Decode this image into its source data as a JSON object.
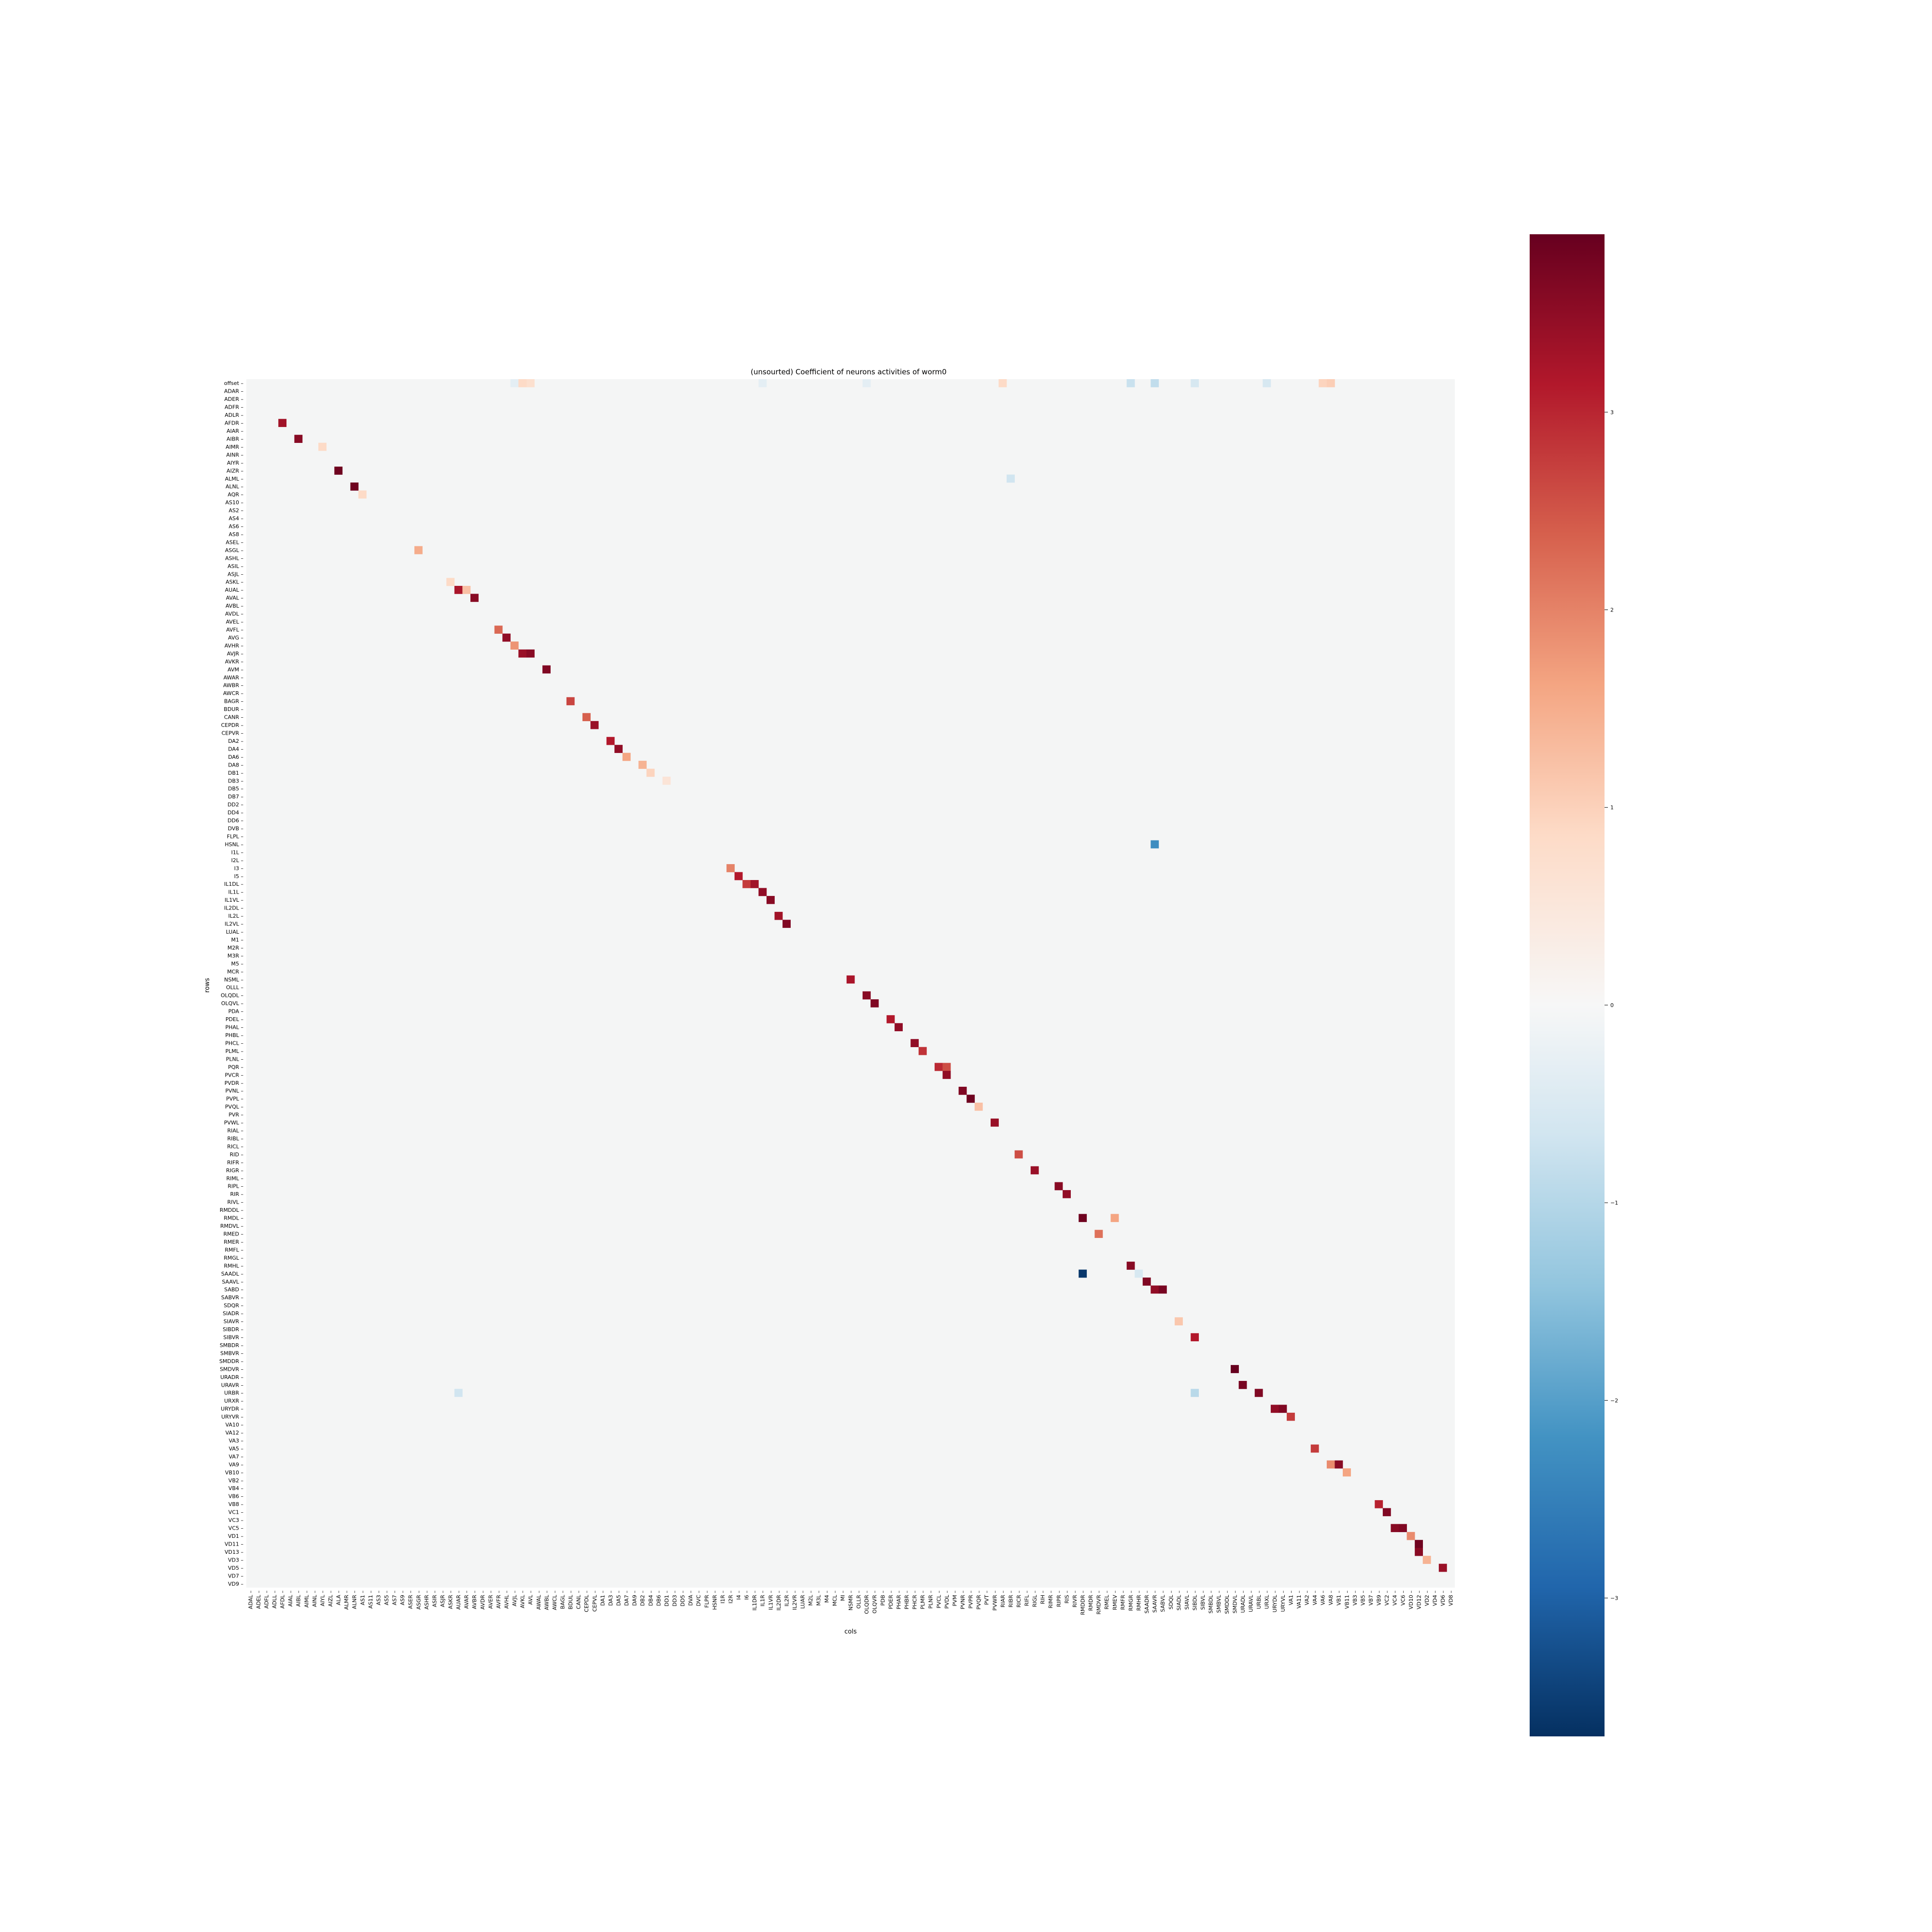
{
  "chart_data": {
    "type": "heatmap",
    "title": "(unsourted) Coefficient of neurons activities of worm0",
    "xlabel": "cols",
    "ylabel": "rows",
    "colormap": "RdBu_r",
    "background_value": 0,
    "vlim": [
      -3.7,
      3.9
    ],
    "colorbar_ticks": [
      3,
      2,
      1,
      0,
      -1,
      -2,
      -3
    ],
    "colorbar_tick_labels": [
      "3",
      "2",
      "1",
      "0",
      "−1",
      "−2",
      "−3"
    ],
    "y_tick_labels": [
      "offset",
      "ADAR",
      "ADER",
      "ADFR",
      "ADLR",
      "AFDR",
      "AIAR",
      "AIBR",
      "AIMR",
      "AINR",
      "AIYR",
      "AIZR",
      "ALML",
      "ALNL",
      "AQR",
      "AS10",
      "AS2",
      "AS4",
      "AS6",
      "AS8",
      "ASEL",
      "ASGL",
      "ASHL",
      "ASIL",
      "ASJL",
      "ASKL",
      "AUAL",
      "AVAL",
      "AVBL",
      "AVDL",
      "AVEL",
      "AVFL",
      "AVG",
      "AVHR",
      "AVJR",
      "AVKR",
      "AVM",
      "AWAR",
      "AWBR",
      "AWCR",
      "BAGR",
      "BDUR",
      "CANR",
      "CEPDR",
      "CEPVR",
      "DA2",
      "DA4",
      "DA6",
      "DA8",
      "DB1",
      "DB3",
      "DB5",
      "DB7",
      "DD2",
      "DD4",
      "DD6",
      "DVB",
      "FLPL",
      "HSNL",
      "I1L",
      "I2L",
      "I3",
      "I5",
      "IL1DL",
      "IL1L",
      "IL1VL",
      "IL2DL",
      "IL2L",
      "IL2VL",
      "LUAL",
      "M1",
      "M2R",
      "M3R",
      "M5",
      "MCR",
      "NSML",
      "OLLL",
      "OLQDL",
      "OLQVL",
      "PDA",
      "PDEL",
      "PHAL",
      "PHBL",
      "PHCL",
      "PLML",
      "PLNL",
      "PQR",
      "PVCR",
      "PVDR",
      "PVNL",
      "PVPL",
      "PVQL",
      "PVR",
      "PVWL",
      "RIAL",
      "RIBL",
      "RICL",
      "RID",
      "RIFR",
      "RIGR",
      "RIML",
      "RIPL",
      "RIR",
      "RIVL",
      "RMDDL",
      "RMDL",
      "RMDVL",
      "RMED",
      "RMER",
      "RMFL",
      "RMGL",
      "RMHL",
      "SAADL",
      "SAAVL",
      "SABD",
      "SABVR",
      "SDQR",
      "SIADR",
      "SIAVR",
      "SIBDR",
      "SIBVR",
      "SMBDR",
      "SMBVR",
      "SMDDR",
      "SMDVR",
      "URADR",
      "URAVR",
      "URBR",
      "URXR",
      "URYDR",
      "URYVR",
      "VA10",
      "VA12",
      "VA3",
      "VA5",
      "VA7",
      "VA9",
      "VB10",
      "VB2",
      "VB4",
      "VB6",
      "VB8",
      "VC1",
      "VC3",
      "VC5",
      "VD1",
      "VD11",
      "VD13",
      "VD3",
      "VD5",
      "VD7",
      "VD9"
    ],
    "x_tick_labels": [
      "ADAL",
      "ADEL",
      "ADFL",
      "ADLL",
      "AFDL",
      "AIAL",
      "AIBL",
      "AIML",
      "AINL",
      "AIYL",
      "AIZL",
      "ALA",
      "ALMR",
      "ALNR",
      "AS1",
      "AS11",
      "AS3",
      "AS5",
      "AS7",
      "AS9",
      "ASER",
      "ASGR",
      "ASHR",
      "ASIR",
      "ASJR",
      "ASKR",
      "AUAR",
      "AVAR",
      "AVBR",
      "AVDR",
      "AVER",
      "AVFR",
      "AVHL",
      "AVJL",
      "AVKL",
      "AVL",
      "AWAL",
      "AWBL",
      "AWCL",
      "BAGL",
      "BDUL",
      "CANL",
      "CEPDL",
      "CEPVL",
      "DA1",
      "DA3",
      "DA5",
      "DA7",
      "DA9",
      "DB2",
      "DB4",
      "DB6",
      "DD1",
      "DD3",
      "DD5",
      "DVA",
      "DVC",
      "FLPR",
      "HSNR",
      "I1R",
      "I2R",
      "I4",
      "I6",
      "IL1DR",
      "IL1R",
      "IL1VR",
      "IL2DR",
      "IL2R",
      "IL2VR",
      "LUAR",
      "M2L",
      "M3L",
      "M4",
      "MCL",
      "MI",
      "NSMR",
      "OLLR",
      "OLQDR",
      "OLQVR",
      "PDB",
      "PDER",
      "PHAR",
      "PHBR",
      "PHCR",
      "PLMR",
      "PLNR",
      "PVCL",
      "PVDL",
      "PVM",
      "PVNR",
      "PVPR",
      "PVQR",
      "PVT",
      "PVWR",
      "RIAR",
      "RIBR",
      "RICR",
      "RIFL",
      "RIGL",
      "RIH",
      "RIMR",
      "RIPR",
      "RIS",
      "RIVR",
      "RMDDR",
      "RMDR",
      "RMDVR",
      "RMEL",
      "RMEV",
      "RMFR",
      "RMGR",
      "RMHR",
      "SAADR",
      "SAAVR",
      "SABVL",
      "SDQL",
      "SIADL",
      "SIAVL",
      "SIBDL",
      "SIBVL",
      "SMBDL",
      "SMBVL",
      "SMDDL",
      "SMDVL",
      "URADL",
      "URAVL",
      "URBL",
      "URXL",
      "URYDL",
      "URYVL",
      "VA1",
      "VA11",
      "VA2",
      "VA4",
      "VA6",
      "VA8",
      "VB1",
      "VB11",
      "VB3",
      "VB5",
      "VB7",
      "VB9",
      "VC2",
      "VC4",
      "VC6",
      "VD10",
      "VD12",
      "VD2",
      "VD4",
      "VD6",
      "VD8"
    ],
    "n_rows": 151,
    "n_cols": 151,
    "highlighted_cells": [
      {
        "row": "offset",
        "col": "AVJL",
        "value": -0.3
      },
      {
        "row": "offset",
        "col": "AVL",
        "value": 0.5
      },
      {
        "row": "offset",
        "col": "AVKL",
        "value": 0.6
      },
      {
        "row": "offset",
        "col": "IL1R",
        "value": -0.3
      },
      {
        "row": "offset",
        "col": "OLQDR",
        "value": -0.3
      },
      {
        "row": "offset",
        "col": "RIAR",
        "value": 0.6
      },
      {
        "row": "offset",
        "col": "RMGR",
        "value": -0.7
      },
      {
        "row": "offset",
        "col": "SAAVR",
        "value": -0.8
      },
      {
        "row": "offset",
        "col": "SIBDL",
        "value": -0.5
      },
      {
        "row": "offset",
        "col": "URXL",
        "value": -0.5
      },
      {
        "row": "offset",
        "col": "VA6",
        "value": 0.7
      },
      {
        "row": "offset",
        "col": "VA8",
        "value": 0.8
      },
      {
        "row": "AFDR",
        "col": "AFDL",
        "value": 3.2
      },
      {
        "row": "AIBR",
        "col": "AIBL",
        "value": 3.5
      },
      {
        "row": "AIMR",
        "col": "AIYL",
        "value": 0.6
      },
      {
        "row": "AIZR",
        "col": "ALA",
        "value": 3.8
      },
      {
        "row": "ALML",
        "col": "RIBR",
        "value": -0.6
      },
      {
        "row": "ALNL",
        "col": "ALNR",
        "value": 3.8
      },
      {
        "row": "AQR",
        "col": "AS1",
        "value": 0.6
      },
      {
        "row": "ASGL",
        "col": "ASGR",
        "value": 1.3
      },
      {
        "row": "ASKL",
        "col": "ASKR",
        "value": 0.6
      },
      {
        "row": "AUAL",
        "col": "AUAR",
        "value": 3.1
      },
      {
        "row": "AUAL",
        "col": "AVAR",
        "value": 1.0
      },
      {
        "row": "AVAL",
        "col": "AVBR",
        "value": 3.5
      },
      {
        "row": "AVFL",
        "col": "AVFR",
        "value": 2.1
      },
      {
        "row": "AVG",
        "col": "AVHL",
        "value": 3.4
      },
      {
        "row": "AVHR",
        "col": "AVJL",
        "value": 1.6
      },
      {
        "row": "AVJR",
        "col": "AVKL",
        "value": 3.3
      },
      {
        "row": "AVJR",
        "col": "AVL",
        "value": 3.5
      },
      {
        "row": "AVM",
        "col": "AWBL",
        "value": 3.6
      },
      {
        "row": "BAGR",
        "col": "BDUL",
        "value": 2.5
      },
      {
        "row": "CANR",
        "col": "CEPDL",
        "value": 2.2
      },
      {
        "row": "CEPDR",
        "col": "CEPVL",
        "value": 3.3
      },
      {
        "row": "DA2",
        "col": "DA3",
        "value": 3.0
      },
      {
        "row": "DA4",
        "col": "DA5",
        "value": 3.4
      },
      {
        "row": "DA6",
        "col": "DA7",
        "value": 1.4
      },
      {
        "row": "DA8",
        "col": "DB2",
        "value": 1.2
      },
      {
        "row": "DB1",
        "col": "DB4",
        "value": 0.7
      },
      {
        "row": "DB3",
        "col": "DD1",
        "value": 0.4
      },
      {
        "row": "HSNL",
        "col": "SAAVR",
        "value": -2.3
      },
      {
        "row": "I3",
        "col": "I2R",
        "value": 1.8
      },
      {
        "row": "I5",
        "col": "I4",
        "value": 3.0
      },
      {
        "row": "IL1DL",
        "col": "I6",
        "value": 2.6
      },
      {
        "row": "IL1DL",
        "col": "IL1DR",
        "value": 3.2
      },
      {
        "row": "IL1L",
        "col": "IL1R",
        "value": 3.4
      },
      {
        "row": "IL1VL",
        "col": "IL1VR",
        "value": 3.5
      },
      {
        "row": "IL2L",
        "col": "IL2DR",
        "value": 3.2
      },
      {
        "row": "IL2VL",
        "col": "IL2R",
        "value": 3.6
      },
      {
        "row": "NSML",
        "col": "NSMR",
        "value": 3.1
      },
      {
        "row": "OLQDL",
        "col": "OLQDR",
        "value": 3.5
      },
      {
        "row": "OLQVL",
        "col": "OLQVR",
        "value": 3.6
      },
      {
        "row": "PDEL",
        "col": "PDER",
        "value": 3.0
      },
      {
        "row": "PHAL",
        "col": "PHAR",
        "value": 3.4
      },
      {
        "row": "PHCL",
        "col": "PHCR",
        "value": 3.4
      },
      {
        "row": "PLML",
        "col": "PLMR",
        "value": 2.7
      },
      {
        "row": "PQR",
        "col": "PVCL",
        "value": 2.8
      },
      {
        "row": "PQR",
        "col": "PVDL",
        "value": 2.4
      },
      {
        "row": "PVCR",
        "col": "PVDL",
        "value": 3.4
      },
      {
        "row": "PVNL",
        "col": "PVNR",
        "value": 3.6
      },
      {
        "row": "PVPL",
        "col": "PVPR",
        "value": 3.8
      },
      {
        "row": "PVQL",
        "col": "PVQR",
        "value": 1.0
      },
      {
        "row": "PVWL",
        "col": "PVWR",
        "value": 3.3
      },
      {
        "row": "RID",
        "col": "RICR",
        "value": 2.4
      },
      {
        "row": "RIGR",
        "col": "RIGL",
        "value": 3.3
      },
      {
        "row": "RIPL",
        "col": "RIPR",
        "value": 3.5
      },
      {
        "row": "RIR",
        "col": "RIS",
        "value": 3.4
      },
      {
        "row": "RMDL",
        "col": "RMDDR",
        "value": 3.8
      },
      {
        "row": "RMDL",
        "col": "RMEV",
        "value": 1.4
      },
      {
        "row": "RMED",
        "col": "RMDVR",
        "value": 2.0
      },
      {
        "row": "RMHL",
        "col": "RMGR",
        "value": 3.5
      },
      {
        "row": "SAADL",
        "col": "RMDDR",
        "value": -3.6
      },
      {
        "row": "SAADL",
        "col": "RMHR",
        "value": -0.5
      },
      {
        "row": "SAAVL",
        "col": "SAADR",
        "value": 3.6
      },
      {
        "row": "SABD",
        "col": "SAAVR",
        "value": 3.4
      },
      {
        "row": "SABD",
        "col": "SABVL",
        "value": 3.7
      },
      {
        "row": "SIAVR",
        "col": "SIADL",
        "value": 0.9
      },
      {
        "row": "SIBVR",
        "col": "SIBDL",
        "value": 3.0
      },
      {
        "row": "SMDVR",
        "col": "SMDVL",
        "value": 3.9
      },
      {
        "row": "URAVR",
        "col": "URADL",
        "value": 3.7
      },
      {
        "row": "URBR",
        "col": "URBL",
        "value": 3.6
      },
      {
        "row": "URBR",
        "col": "SIBDL",
        "value": -0.9
      },
      {
        "row": "URBR",
        "col": "AUAR",
        "value": -0.6
      },
      {
        "row": "URYDR",
        "col": "URYDL",
        "value": 3.4
      },
      {
        "row": "URYDR",
        "col": "URYVL",
        "value": 3.6
      },
      {
        "row": "URYVR",
        "col": "VA1",
        "value": 2.6
      },
      {
        "row": "VA5",
        "col": "VA4",
        "value": 2.6
      },
      {
        "row": "VA9",
        "col": "VA8",
        "value": 1.7
      },
      {
        "row": "VA9",
        "col": "VB1",
        "value": 3.5
      },
      {
        "row": "VB10",
        "col": "VB11",
        "value": 1.4
      },
      {
        "row": "VB8",
        "col": "VB9",
        "value": 2.9
      },
      {
        "row": "VC1",
        "col": "VC2",
        "value": 3.6
      },
      {
        "row": "VC5",
        "col": "VC4",
        "value": 3.5
      },
      {
        "row": "VC5",
        "col": "VC6",
        "value": 3.6
      },
      {
        "row": "VD1",
        "col": "VD10",
        "value": 1.7
      },
      {
        "row": "VD11",
        "col": "VD12",
        "value": 3.8
      },
      {
        "row": "VD13",
        "col": "VD12",
        "value": 3.5
      },
      {
        "row": "VD3",
        "col": "VD2",
        "value": 1.2
      },
      {
        "row": "VD5",
        "col": "VD6",
        "value": 3.3
      }
    ]
  }
}
